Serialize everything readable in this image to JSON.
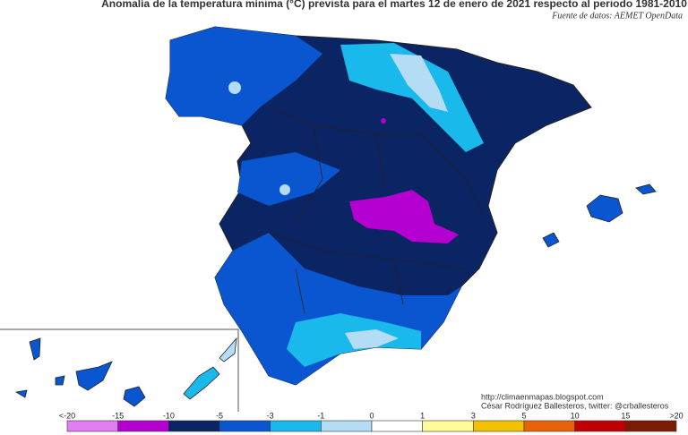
{
  "header": {
    "title": "Anomalía de la temperatura mínima (°C) prevista para el martes 12 de enero de 2021 respecto al periodo 1981-2010",
    "source": "Fuente de datos: AEMET OpenData"
  },
  "credits": [
    "http://climaenmapas.blogspot.com",
    "César Rodríguez Ballesteros, twitter: @crballesteros"
  ],
  "legend": {
    "labels": [
      "<-20",
      "-15",
      "-10",
      "-5",
      "-3",
      "-1",
      "0",
      "1",
      "3",
      "5",
      "10",
      "15",
      ">20"
    ],
    "colors": [
      "#e07ef2",
      "#b400d0",
      "#0b2463",
      "#0a56d0",
      "#19b9eb",
      "#b5dcf5",
      "#ffffff",
      "#fffa9a",
      "#f2c200",
      "#e8620a",
      "#c00000",
      "#7a1c00"
    ]
  }
}
